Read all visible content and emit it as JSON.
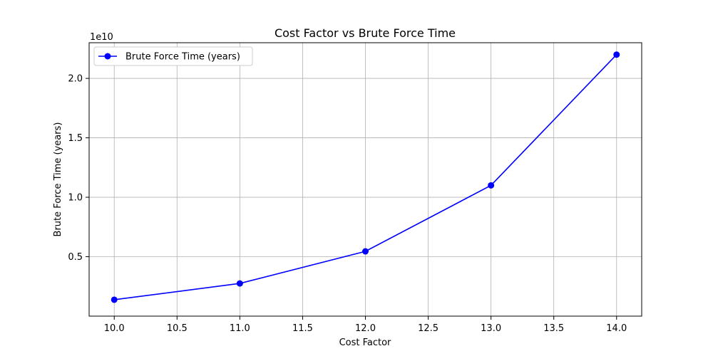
{
  "chart_data": {
    "type": "line",
    "title": "Cost Factor vs Brute Force Time",
    "xlabel": "Cost Factor",
    "ylabel": "Brute Force Time (years)",
    "y_offset_text": "1e10",
    "xlim": [
      9.8,
      14.2
    ],
    "ylim": [
      0.0,
      2.3
    ],
    "x_ticks": [
      "10.0",
      "10.5",
      "11.0",
      "11.5",
      "12.0",
      "12.5",
      "13.0",
      "13.5",
      "14.0"
    ],
    "x_tick_values": [
      10.0,
      10.5,
      11.0,
      11.5,
      12.0,
      12.5,
      13.0,
      13.5,
      14.0
    ],
    "y_ticks": [
      "0.5",
      "1.0",
      "1.5",
      "2.0"
    ],
    "y_tick_values": [
      0.5,
      1.0,
      1.5,
      2.0
    ],
    "grid": true,
    "legend_position": "top-left",
    "series": [
      {
        "name": "Brute Force Time (years)",
        "color": "#0000ff",
        "marker": "circle",
        "x": [
          10,
          11,
          12,
          13,
          14
        ],
        "y": [
          0.138,
          0.275,
          0.545,
          1.1,
          2.2
        ]
      }
    ]
  }
}
